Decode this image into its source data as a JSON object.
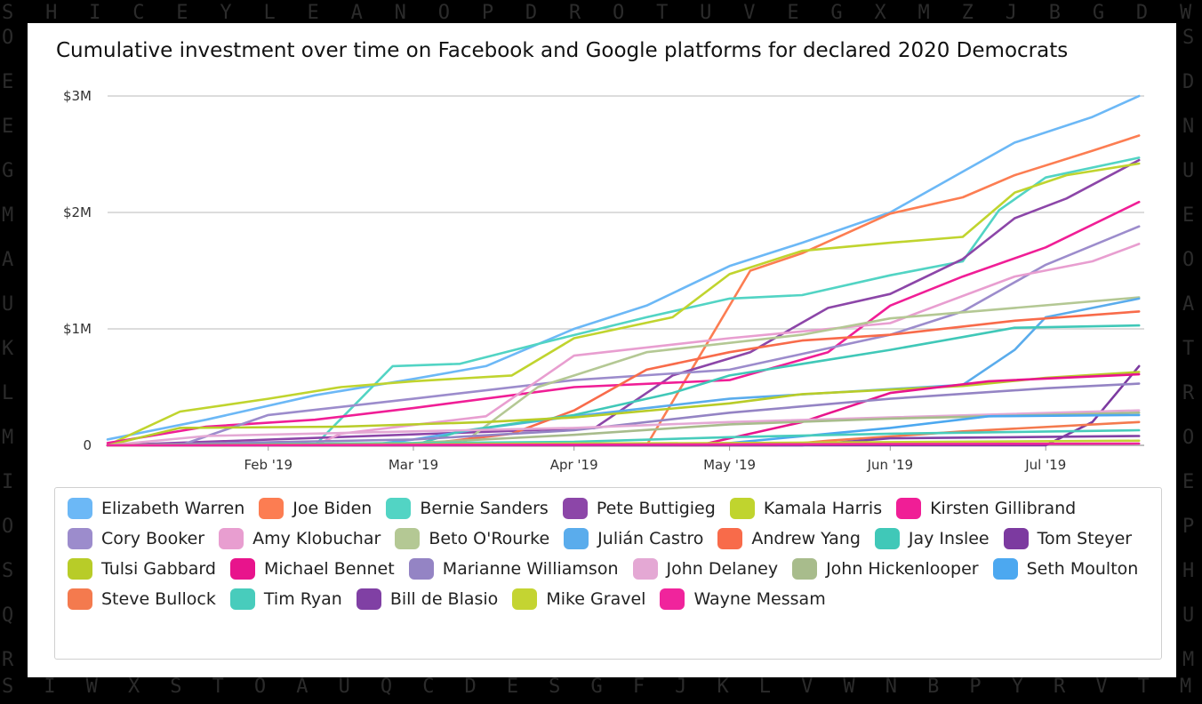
{
  "frame_letters": {
    "top": [
      "S",
      "H",
      "I",
      "C",
      "E",
      "Y",
      "L",
      "E",
      "A",
      "N",
      "O",
      "P",
      "D",
      "R",
      "O",
      "T",
      "U",
      "V",
      "E",
      "G",
      "X",
      "M",
      "Z",
      "J",
      "B",
      "G",
      "D",
      "W"
    ],
    "bottom": [
      "S",
      "I",
      "W",
      "X",
      "S",
      "T",
      "O",
      "A",
      "U",
      "Q",
      "C",
      "D",
      "E",
      "S",
      "G",
      "F",
      "J",
      "K",
      "L",
      "V",
      "W",
      "N",
      "B",
      "P",
      "Y",
      "R",
      "V",
      "T",
      "M"
    ],
    "left": [
      "O",
      "E",
      "E",
      "G",
      "M",
      "A",
      "U",
      "K",
      "L",
      "M",
      "I",
      "O",
      "S",
      "Q",
      "R"
    ],
    "right": [
      "S",
      "D",
      "N",
      "U",
      "E",
      "O",
      "A",
      "T",
      "R",
      "O",
      "E",
      "P",
      "H",
      "U",
      "M"
    ]
  },
  "chart_data": {
    "type": "line",
    "title": "Cumulative investment over time on Facebook and Google platforms for declared 2020 Democrats",
    "xlabel": "",
    "ylabel": "",
    "x_range": [
      "2019-01-01",
      "2019-07-20"
    ],
    "x_ticks": [
      {
        "date": "2019-02-01",
        "label": "Feb '19"
      },
      {
        "date": "2019-03-01",
        "label": "Mar '19"
      },
      {
        "date": "2019-04-01",
        "label": "Apr '19"
      },
      {
        "date": "2019-05-01",
        "label": "May '19"
      },
      {
        "date": "2019-06-01",
        "label": "Jun '19"
      },
      {
        "date": "2019-07-01",
        "label": "Jul '19"
      }
    ],
    "ylim": [
      0,
      3000000
    ],
    "y_ticks": [
      {
        "value": 0,
        "label": "0"
      },
      {
        "value": 1000000,
        "label": "$1M"
      },
      {
        "value": 2000000,
        "label": "$2M"
      },
      {
        "value": 3000000,
        "label": "$3M"
      }
    ],
    "grid": true,
    "legend_position": "bottom",
    "series": [
      {
        "name": "Elizabeth Warren",
        "color": "#6cb8f6",
        "points": [
          [
            "2019-01-01",
            50000
          ],
          [
            "2019-01-20",
            220000
          ],
          [
            "2019-02-10",
            430000
          ],
          [
            "2019-03-01",
            570000
          ],
          [
            "2019-03-15",
            680000
          ],
          [
            "2019-04-01",
            1000000
          ],
          [
            "2019-04-15",
            1200000
          ],
          [
            "2019-05-01",
            1540000
          ],
          [
            "2019-05-15",
            1740000
          ],
          [
            "2019-06-01",
            2000000
          ],
          [
            "2019-06-15",
            2350000
          ],
          [
            "2019-06-25",
            2600000
          ],
          [
            "2019-07-10",
            2820000
          ],
          [
            "2019-07-19",
            3000000
          ]
        ]
      },
      {
        "name": "Joe Biden",
        "color": "#fc7d52",
        "points": [
          [
            "2019-01-01",
            0
          ],
          [
            "2019-04-15",
            0
          ],
          [
            "2019-04-25",
            750000
          ],
          [
            "2019-05-05",
            1500000
          ],
          [
            "2019-05-15",
            1650000
          ],
          [
            "2019-06-01",
            1990000
          ],
          [
            "2019-06-15",
            2130000
          ],
          [
            "2019-06-25",
            2320000
          ],
          [
            "2019-07-10",
            2530000
          ],
          [
            "2019-07-19",
            2660000
          ]
        ]
      },
      {
        "name": "Bernie Sanders",
        "color": "#52d4c4",
        "points": [
          [
            "2019-01-01",
            0
          ],
          [
            "2019-02-10",
            0
          ],
          [
            "2019-02-25",
            680000
          ],
          [
            "2019-03-10",
            700000
          ],
          [
            "2019-03-25",
            870000
          ],
          [
            "2019-04-15",
            1100000
          ],
          [
            "2019-05-01",
            1260000
          ],
          [
            "2019-05-15",
            1290000
          ],
          [
            "2019-06-01",
            1460000
          ],
          [
            "2019-06-15",
            1580000
          ],
          [
            "2019-06-22",
            2020000
          ],
          [
            "2019-07-01",
            2300000
          ],
          [
            "2019-07-19",
            2470000
          ]
        ]
      },
      {
        "name": "Pete Buttigieg",
        "color": "#8c46a8",
        "points": [
          [
            "2019-01-01",
            0
          ],
          [
            "2019-04-05",
            150000
          ],
          [
            "2019-04-20",
            600000
          ],
          [
            "2019-05-05",
            800000
          ],
          [
            "2019-05-20",
            1180000
          ],
          [
            "2019-06-01",
            1300000
          ],
          [
            "2019-06-15",
            1600000
          ],
          [
            "2019-06-25",
            1950000
          ],
          [
            "2019-07-05",
            2120000
          ],
          [
            "2019-07-19",
            2450000
          ]
        ]
      },
      {
        "name": "Kamala Harris",
        "color": "#c0d42e",
        "points": [
          [
            "2019-01-01",
            0
          ],
          [
            "2019-01-15",
            290000
          ],
          [
            "2019-02-01",
            400000
          ],
          [
            "2019-02-15",
            500000
          ],
          [
            "2019-03-01",
            550000
          ],
          [
            "2019-03-20",
            600000
          ],
          [
            "2019-04-01",
            920000
          ],
          [
            "2019-04-20",
            1100000
          ],
          [
            "2019-05-01",
            1470000
          ],
          [
            "2019-05-15",
            1670000
          ],
          [
            "2019-06-01",
            1740000
          ],
          [
            "2019-06-15",
            1790000
          ],
          [
            "2019-06-25",
            2170000
          ],
          [
            "2019-07-05",
            2320000
          ],
          [
            "2019-07-19",
            2420000
          ]
        ]
      },
      {
        "name": "Kirsten Gillibrand",
        "color": "#f01e96",
        "points": [
          [
            "2019-01-01",
            20000
          ],
          [
            "2019-01-20",
            160000
          ],
          [
            "2019-02-10",
            220000
          ],
          [
            "2019-03-01",
            320000
          ],
          [
            "2019-04-01",
            500000
          ],
          [
            "2019-05-01",
            560000
          ],
          [
            "2019-05-20",
            800000
          ],
          [
            "2019-06-01",
            1200000
          ],
          [
            "2019-06-15",
            1450000
          ],
          [
            "2019-07-01",
            1700000
          ],
          [
            "2019-07-19",
            2090000
          ]
        ]
      },
      {
        "name": "Cory Booker",
        "color": "#9c8ccc",
        "points": [
          [
            "2019-01-01",
            0
          ],
          [
            "2019-01-15",
            0
          ],
          [
            "2019-02-01",
            260000
          ],
          [
            "2019-03-01",
            400000
          ],
          [
            "2019-04-01",
            560000
          ],
          [
            "2019-05-01",
            650000
          ],
          [
            "2019-06-01",
            950000
          ],
          [
            "2019-06-15",
            1150000
          ],
          [
            "2019-07-01",
            1550000
          ],
          [
            "2019-07-19",
            1880000
          ]
        ]
      },
      {
        "name": "Amy Klobuchar",
        "color": "#e89ed0",
        "points": [
          [
            "2019-01-01",
            0
          ],
          [
            "2019-02-10",
            0
          ],
          [
            "2019-02-15",
            100000
          ],
          [
            "2019-03-15",
            250000
          ],
          [
            "2019-04-01",
            770000
          ],
          [
            "2019-05-01",
            920000
          ],
          [
            "2019-06-01",
            1050000
          ],
          [
            "2019-06-25",
            1450000
          ],
          [
            "2019-07-10",
            1580000
          ],
          [
            "2019-07-19",
            1730000
          ]
        ]
      },
      {
        "name": "Beto O'Rourke",
        "color": "#b4c894",
        "points": [
          [
            "2019-01-01",
            0
          ],
          [
            "2019-03-10",
            0
          ],
          [
            "2019-03-25",
            500000
          ],
          [
            "2019-04-15",
            800000
          ],
          [
            "2019-05-15",
            950000
          ],
          [
            "2019-06-01",
            1090000
          ],
          [
            "2019-06-25",
            1180000
          ],
          [
            "2019-07-19",
            1270000
          ]
        ]
      },
      {
        "name": "Julián Castro",
        "color": "#5aacec",
        "points": [
          [
            "2019-01-01",
            0
          ],
          [
            "2019-02-20",
            0
          ],
          [
            "2019-03-01",
            50000
          ],
          [
            "2019-03-15",
            150000
          ],
          [
            "2019-04-01",
            250000
          ],
          [
            "2019-05-01",
            400000
          ],
          [
            "2019-06-15",
            520000
          ],
          [
            "2019-06-25",
            820000
          ],
          [
            "2019-07-01",
            1100000
          ],
          [
            "2019-07-19",
            1260000
          ]
        ]
      },
      {
        "name": "Andrew Yang",
        "color": "#f86b4a",
        "points": [
          [
            "2019-01-01",
            0
          ],
          [
            "2019-03-01",
            0
          ],
          [
            "2019-03-20",
            100000
          ],
          [
            "2019-04-01",
            300000
          ],
          [
            "2019-04-15",
            650000
          ],
          [
            "2019-05-01",
            800000
          ],
          [
            "2019-05-15",
            900000
          ],
          [
            "2019-06-01",
            950000
          ],
          [
            "2019-06-25",
            1070000
          ],
          [
            "2019-07-19",
            1150000
          ]
        ]
      },
      {
        "name": "Jay Inslee",
        "color": "#40c8b8",
        "points": [
          [
            "2019-01-01",
            0
          ],
          [
            "2019-03-01",
            0
          ],
          [
            "2019-03-10",
            120000
          ],
          [
            "2019-04-01",
            260000
          ],
          [
            "2019-04-20",
            450000
          ],
          [
            "2019-05-01",
            600000
          ],
          [
            "2019-06-01",
            820000
          ],
          [
            "2019-06-15",
            930000
          ],
          [
            "2019-06-25",
            1010000
          ],
          [
            "2019-07-19",
            1030000
          ]
        ]
      },
      {
        "name": "Tom Steyer",
        "color": "#7c3aa0",
        "points": [
          [
            "2019-01-01",
            0
          ],
          [
            "2019-07-01",
            0
          ],
          [
            "2019-07-10",
            200000
          ],
          [
            "2019-07-19",
            680000
          ]
        ]
      },
      {
        "name": "Tulsi Gabbard",
        "color": "#b8cc28",
        "points": [
          [
            "2019-01-01",
            0
          ],
          [
            "2019-01-15",
            150000
          ],
          [
            "2019-02-15",
            160000
          ],
          [
            "2019-03-15",
            200000
          ],
          [
            "2019-04-01",
            240000
          ],
          [
            "2019-05-01",
            360000
          ],
          [
            "2019-05-15",
            440000
          ],
          [
            "2019-06-15",
            510000
          ],
          [
            "2019-07-01",
            580000
          ],
          [
            "2019-07-19",
            630000
          ]
        ]
      },
      {
        "name": "Michael Bennet",
        "color": "#e8148c",
        "points": [
          [
            "2019-01-01",
            0
          ],
          [
            "2019-04-25",
            0
          ],
          [
            "2019-05-15",
            200000
          ],
          [
            "2019-06-01",
            450000
          ],
          [
            "2019-06-20",
            550000
          ],
          [
            "2019-07-19",
            610000
          ]
        ]
      },
      {
        "name": "Marianne Williamson",
        "color": "#9484c4",
        "points": [
          [
            "2019-01-01",
            0
          ],
          [
            "2019-03-01",
            50000
          ],
          [
            "2019-04-01",
            130000
          ],
          [
            "2019-05-01",
            280000
          ],
          [
            "2019-06-01",
            400000
          ],
          [
            "2019-07-01",
            490000
          ],
          [
            "2019-07-19",
            530000
          ]
        ]
      },
      {
        "name": "John Delaney",
        "color": "#e4a8d4",
        "points": [
          [
            "2019-01-01",
            0
          ],
          [
            "2019-01-20",
            80000
          ],
          [
            "2019-03-01",
            120000
          ],
          [
            "2019-04-01",
            150000
          ],
          [
            "2019-05-01",
            200000
          ],
          [
            "2019-06-01",
            240000
          ],
          [
            "2019-07-19",
            300000
          ]
        ]
      },
      {
        "name": "John Hickenlooper",
        "color": "#a8bc8c",
        "points": [
          [
            "2019-01-01",
            0
          ],
          [
            "2019-03-01",
            20000
          ],
          [
            "2019-04-01",
            90000
          ],
          [
            "2019-05-01",
            180000
          ],
          [
            "2019-06-01",
            230000
          ],
          [
            "2019-07-19",
            280000
          ]
        ]
      },
      {
        "name": "Seth Moulton",
        "color": "#4ca8f0",
        "points": [
          [
            "2019-01-01",
            0
          ],
          [
            "2019-04-20",
            0
          ],
          [
            "2019-05-01",
            20000
          ],
          [
            "2019-06-01",
            150000
          ],
          [
            "2019-06-20",
            250000
          ],
          [
            "2019-07-19",
            260000
          ]
        ]
      },
      {
        "name": "Steve Bullock",
        "color": "#f47a4e",
        "points": [
          [
            "2019-01-01",
            0
          ],
          [
            "2019-05-10",
            0
          ],
          [
            "2019-05-20",
            40000
          ],
          [
            "2019-06-15",
            120000
          ],
          [
            "2019-07-19",
            200000
          ]
        ]
      },
      {
        "name": "Tim Ryan",
        "color": "#48ccbc",
        "points": [
          [
            "2019-01-01",
            0
          ],
          [
            "2019-04-01",
            30000
          ],
          [
            "2019-05-01",
            70000
          ],
          [
            "2019-06-01",
            100000
          ],
          [
            "2019-07-19",
            130000
          ]
        ]
      },
      {
        "name": "Bill de Blasio",
        "color": "#8040a4",
        "points": [
          [
            "2019-01-01",
            0
          ],
          [
            "2019-05-15",
            0
          ],
          [
            "2019-06-01",
            60000
          ],
          [
            "2019-07-19",
            80000
          ]
        ]
      },
      {
        "name": "Mike Gravel",
        "color": "#c4d432",
        "points": [
          [
            "2019-01-01",
            0
          ],
          [
            "2019-03-01",
            10000
          ],
          [
            "2019-05-01",
            20000
          ],
          [
            "2019-07-19",
            40000
          ]
        ]
      },
      {
        "name": "Wayne Messam",
        "color": "#f0249c",
        "points": [
          [
            "2019-01-01",
            0
          ],
          [
            "2019-04-01",
            5000
          ],
          [
            "2019-07-19",
            15000
          ]
        ]
      }
    ]
  }
}
